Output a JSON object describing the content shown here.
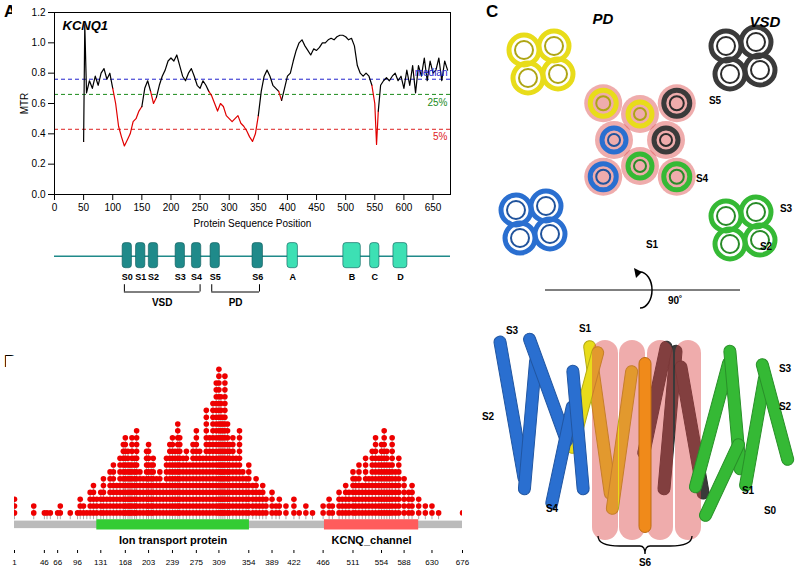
{
  "panel_labels": [
    "A",
    "B",
    "C"
  ],
  "chart_data": [
    {
      "type": "line",
      "title": "KCNQ1",
      "x_label": "Protein Sequence Position",
      "y_label": "MTR",
      "x": [
        50,
        52,
        55,
        60,
        65,
        70,
        75,
        80,
        85,
        90,
        95,
        100,
        105,
        110,
        115,
        120,
        125,
        130,
        135,
        140,
        145,
        150,
        155,
        160,
        165,
        170,
        175,
        180,
        185,
        190,
        195,
        200,
        205,
        210,
        215,
        220,
        225,
        230,
        235,
        240,
        245,
        250,
        255,
        260,
        265,
        270,
        275,
        280,
        285,
        290,
        295,
        300,
        305,
        310,
        315,
        320,
        325,
        330,
        335,
        340,
        345,
        350,
        355,
        360,
        365,
        370,
        375,
        380,
        385,
        390,
        395,
        400,
        405,
        410,
        415,
        420,
        425,
        430,
        435,
        440,
        445,
        450,
        455,
        460,
        465,
        470,
        475,
        480,
        485,
        490,
        495,
        500,
        505,
        510,
        515,
        520,
        525,
        530,
        535,
        540,
        545,
        550,
        553,
        556,
        560,
        565,
        570,
        575,
        580,
        585,
        590,
        595,
        600,
        605,
        610,
        615,
        620,
        625,
        630,
        635,
        640,
        645,
        650,
        655,
        660,
        665,
        670,
        675
      ],
      "values": [
        0.35,
        1.12,
        0.67,
        0.75,
        0.7,
        0.78,
        0.72,
        0.8,
        0.83,
        0.76,
        0.8,
        0.7,
        0.6,
        0.45,
        0.38,
        0.32,
        0.36,
        0.4,
        0.48,
        0.5,
        0.55,
        0.58,
        0.7,
        0.75,
        0.68,
        0.6,
        0.64,
        0.72,
        0.78,
        0.82,
        0.88,
        0.9,
        0.88,
        0.92,
        0.85,
        0.78,
        0.75,
        0.8,
        0.83,
        0.78,
        0.72,
        0.7,
        0.75,
        0.72,
        0.68,
        0.65,
        0.6,
        0.55,
        0.6,
        0.58,
        0.52,
        0.5,
        0.48,
        0.5,
        0.52,
        0.47,
        0.45,
        0.42,
        0.38,
        0.35,
        0.4,
        0.52,
        0.68,
        0.78,
        0.82,
        0.78,
        0.72,
        0.7,
        0.68,
        0.62,
        0.7,
        0.78,
        0.8,
        0.88,
        0.95,
        1.0,
        1.02,
        0.98,
        0.95,
        0.92,
        0.96,
        0.95,
        0.97,
        1.0,
        1.0,
        1.02,
        1.03,
        1.02,
        1.04,
        1.05,
        1.05,
        1.04,
        1.02,
        1.03,
        0.98,
        0.85,
        0.8,
        0.78,
        0.8,
        0.78,
        0.72,
        0.6,
        0.33,
        0.55,
        0.72,
        0.75,
        0.77,
        0.75,
        0.78,
        0.8,
        0.75,
        0.78,
        0.7,
        0.82,
        0.72,
        0.85,
        0.67,
        0.85,
        0.78,
        0.9,
        0.75,
        0.88,
        0.8,
        0.82,
        0.9,
        0.75,
        0.88,
        0.82
      ],
      "colors": [
        "#000000",
        "#e00000"
      ],
      "xlim": [
        0,
        680
      ],
      "xticks": [
        0,
        50,
        100,
        150,
        200,
        250,
        300,
        350,
        400,
        450,
        500,
        550,
        600,
        650
      ],
      "ylim": [
        0,
        1.2
      ],
      "yticks": [
        {
          "value": 0,
          "label": "0.0"
        },
        {
          "value": 0.2,
          "label": "0.2"
        },
        {
          "value": 0.4,
          "label": "0.4"
        },
        {
          "value": 0.6,
          "label": "0.6"
        },
        {
          "value": 0.8,
          "label": "0.8"
        },
        {
          "value": 1,
          "label": "1.0"
        },
        {
          "value": 1.2,
          "label": "1.2"
        }
      ],
      "reference_lines": [
        {
          "label": "median",
          "value": 0.76,
          "color": "#2222cc"
        },
        {
          "label": "25%",
          "value": 0.66,
          "color": "#1a8a1a"
        },
        {
          "label": "5%",
          "value": 0.43,
          "color": "#dd2222"
        }
      ],
      "domain_diagram": {
        "helices": [
          {
            "label": "S0",
            "start": 117,
            "end": 133,
            "color": "#1f8a8a"
          },
          {
            "label": "S1",
            "start": 140,
            "end": 156,
            "color": "#1f8a8a"
          },
          {
            "label": "S2",
            "start": 162,
            "end": 178,
            "color": "#1f8a8a"
          },
          {
            "label": "S3",
            "start": 208,
            "end": 224,
            "color": "#1f8a8a"
          },
          {
            "label": "S4",
            "start": 236,
            "end": 252,
            "color": "#1f8a8a"
          },
          {
            "label": "S5",
            "start": 268,
            "end": 284,
            "color": "#1f8a8a"
          },
          {
            "label": "S6",
            "start": 340,
            "end": 358,
            "color": "#1f8a8a"
          },
          {
            "label": "A",
            "start": 400,
            "end": 418,
            "color": "#3de0b4"
          },
          {
            "label": "B",
            "start": 496,
            "end": 526,
            "color": "#3de0b4"
          },
          {
            "label": "C",
            "start": 542,
            "end": 558,
            "color": "#3de0b4"
          },
          {
            "label": "D",
            "start": 582,
            "end": 606,
            "color": "#3de0b4"
          }
        ],
        "brackets": [
          {
            "label": "VSD",
            "start": 120,
            "end": 250
          },
          {
            "label": "PD",
            "start": 270,
            "end": 352
          }
        ]
      }
    },
    {
      "type": "lollipop",
      "x": [
        1,
        30,
        46,
        50,
        55,
        66,
        70,
        85,
        96,
        100,
        105,
        110,
        115,
        120,
        125,
        131,
        135,
        140,
        145,
        150,
        155,
        160,
        165,
        168,
        172,
        175,
        178,
        182,
        185,
        190,
        195,
        200,
        203,
        207,
        210,
        215,
        220,
        225,
        230,
        235,
        239,
        243,
        247,
        250,
        255,
        260,
        265,
        270,
        275,
        280,
        285,
        290,
        295,
        300,
        305,
        309,
        312,
        315,
        318,
        322,
        325,
        330,
        335,
        340,
        345,
        350,
        354,
        360,
        365,
        370,
        375,
        380,
        389,
        395,
        400,
        410,
        422,
        430,
        440,
        450,
        466,
        475,
        480,
        490,
        495,
        500,
        505,
        511,
        515,
        520,
        525,
        530,
        535,
        540,
        545,
        550,
        554,
        558,
        562,
        566,
        570,
        575,
        580,
        588,
        595,
        600,
        610,
        620,
        630,
        640,
        676
      ],
      "values": [
        3,
        2,
        1,
        1,
        1,
        1,
        2,
        1,
        1,
        3,
        2,
        1,
        4,
        5,
        3,
        4,
        6,
        3,
        7,
        8,
        5,
        9,
        11,
        12,
        10,
        8,
        12,
        9,
        13,
        7,
        6,
        10,
        11,
        8,
        9,
        6,
        7,
        5,
        9,
        11,
        12,
        10,
        14,
        12,
        9,
        10,
        8,
        11,
        13,
        10,
        9,
        16,
        12,
        17,
        20,
        22,
        18,
        15,
        21,
        14,
        11,
        12,
        9,
        13,
        7,
        6,
        8,
        5,
        6,
        4,
        5,
        3,
        4,
        2,
        3,
        2,
        3,
        1,
        2,
        1,
        2,
        3,
        2,
        4,
        3,
        5,
        4,
        7,
        6,
        8,
        5,
        9,
        6,
        10,
        12,
        9,
        11,
        13,
        10,
        8,
        12,
        7,
        9,
        6,
        4,
        5,
        3,
        2,
        2,
        1,
        1
      ],
      "color": "#ee0000",
      "xlim": [
        1,
        676
      ],
      "xticks": [
        1,
        46,
        66,
        96,
        131,
        168,
        203,
        239,
        275,
        309,
        354,
        389,
        422,
        466,
        511,
        554,
        588,
        630,
        676
      ],
      "tick_labels": "x",
      "domains": [
        {
          "label": "Ion transport protein",
          "start": 125,
          "end": 355,
          "color": "#33cc33"
        },
        {
          "label": "KCNQ_channel",
          "start": 468,
          "end": 610,
          "color": "#ff5c5c"
        }
      ]
    }
  ],
  "structure": {
    "top_view_labels": [
      "PD",
      "VSD",
      "S5",
      "S4",
      "S3",
      "S2",
      "S1"
    ],
    "rotation_label": "90˚",
    "side_view_labels": [
      "S3",
      "S1",
      "S2",
      "S4",
      "S3",
      "S2",
      "S1",
      "S0",
      "S6"
    ]
  }
}
